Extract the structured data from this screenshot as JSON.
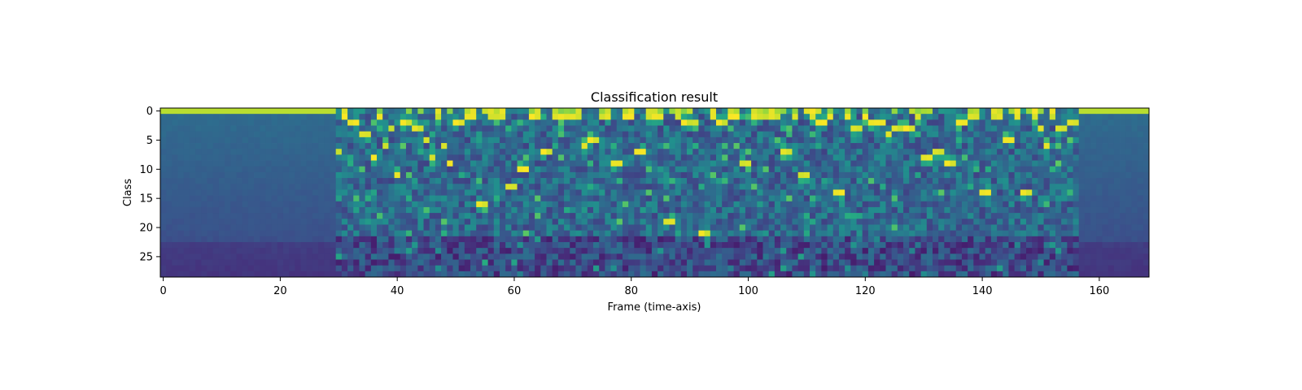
{
  "chart_data": {
    "type": "heatmap",
    "title": "Classification result",
    "xlabel": "Frame (time-axis)",
    "ylabel": "Class",
    "n_frames": 169,
    "n_classes": 29,
    "xlim": [
      -0.5,
      168.5
    ],
    "ylim": [
      28.5,
      -0.5
    ],
    "x_ticks": [
      0,
      20,
      40,
      60,
      80,
      100,
      120,
      140,
      160
    ],
    "y_ticks": [
      0,
      5,
      10,
      15,
      20,
      25
    ],
    "colormap": "viridis",
    "value_range": [
      0,
      1
    ],
    "grid": false,
    "legend": "none",
    "silence_frames": [
      [
        0,
        29
      ],
      [
        157,
        168
      ]
    ],
    "silence_class": 0,
    "peaks": [
      [
        30,
        7
      ],
      [
        31,
        1
      ],
      [
        32,
        2
      ],
      [
        33,
        2
      ],
      [
        34,
        4
      ],
      [
        35,
        4
      ],
      [
        36,
        8
      ],
      [
        37,
        1
      ],
      [
        38,
        6
      ],
      [
        39,
        3
      ],
      [
        40,
        11
      ],
      [
        41,
        2
      ],
      [
        42,
        2
      ],
      [
        43,
        3
      ],
      [
        44,
        3
      ],
      [
        45,
        5
      ],
      [
        46,
        8
      ],
      [
        47,
        1
      ],
      [
        48,
        6
      ],
      [
        49,
        9
      ],
      [
        50,
        2
      ],
      [
        51,
        2
      ],
      [
        52,
        1
      ],
      [
        53,
        1
      ],
      [
        54,
        16
      ],
      [
        55,
        16
      ],
      [
        56,
        1
      ],
      [
        57,
        1
      ],
      [
        58,
        1
      ],
      [
        59,
        13
      ],
      [
        60,
        13
      ],
      [
        61,
        10
      ],
      [
        62,
        10
      ],
      [
        63,
        1
      ],
      [
        64,
        1
      ],
      [
        65,
        7
      ],
      [
        66,
        7
      ],
      [
        67,
        1
      ],
      [
        68,
        1
      ],
      [
        69,
        1
      ],
      [
        70,
        1
      ],
      [
        71,
        1
      ],
      [
        72,
        6
      ],
      [
        73,
        5
      ],
      [
        74,
        5
      ],
      [
        75,
        1
      ],
      [
        76,
        1
      ],
      [
        77,
        9
      ],
      [
        78,
        9
      ],
      [
        79,
        1
      ],
      [
        80,
        1
      ],
      [
        81,
        7
      ],
      [
        82,
        7
      ],
      [
        83,
        1
      ],
      [
        84,
        1
      ],
      [
        85,
        1
      ],
      [
        86,
        19
      ],
      [
        87,
        19
      ],
      [
        88,
        1
      ],
      [
        89,
        2
      ],
      [
        90,
        2
      ],
      [
        91,
        2
      ],
      [
        92,
        21
      ],
      [
        93,
        21
      ],
      [
        94,
        1
      ],
      [
        95,
        2
      ],
      [
        96,
        2
      ],
      [
        97,
        1
      ],
      [
        98,
        1
      ],
      [
        99,
        9
      ],
      [
        100,
        9
      ],
      [
        101,
        1
      ],
      [
        102,
        1
      ],
      [
        103,
        1
      ],
      [
        104,
        1
      ],
      [
        105,
        1
      ],
      [
        106,
        7
      ],
      [
        107,
        7
      ],
      [
        108,
        1
      ],
      [
        109,
        11
      ],
      [
        110,
        11
      ],
      [
        111,
        1
      ],
      [
        112,
        2
      ],
      [
        113,
        2
      ],
      [
        114,
        1
      ],
      [
        115,
        14
      ],
      [
        116,
        14
      ],
      [
        117,
        1
      ],
      [
        118,
        3
      ],
      [
        119,
        3
      ],
      [
        120,
        1
      ],
      [
        121,
        2
      ],
      [
        122,
        2
      ],
      [
        123,
        2
      ],
      [
        124,
        4
      ],
      [
        125,
        3
      ],
      [
        126,
        3
      ],
      [
        127,
        3
      ],
      [
        128,
        3
      ],
      [
        129,
        1
      ],
      [
        130,
        8
      ],
      [
        131,
        8
      ],
      [
        132,
        7
      ],
      [
        133,
        7
      ],
      [
        134,
        9
      ],
      [
        135,
        9
      ],
      [
        136,
        2
      ],
      [
        137,
        2
      ],
      [
        138,
        1
      ],
      [
        139,
        1
      ],
      [
        140,
        14
      ],
      [
        141,
        14
      ],
      [
        142,
        1
      ],
      [
        143,
        1
      ],
      [
        144,
        5
      ],
      [
        145,
        5
      ],
      [
        146,
        1
      ],
      [
        147,
        14
      ],
      [
        148,
        14
      ],
      [
        149,
        1
      ],
      [
        150,
        3
      ],
      [
        151,
        6
      ],
      [
        152,
        1
      ],
      [
        153,
        3
      ],
      [
        154,
        3
      ],
      [
        155,
        2
      ],
      [
        156,
        2
      ]
    ]
  }
}
